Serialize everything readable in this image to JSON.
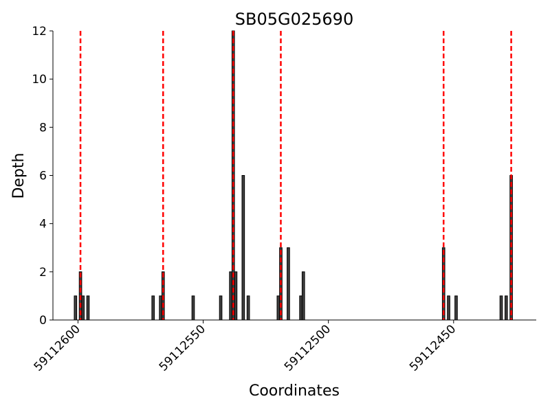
{
  "chart_data": {
    "type": "bar",
    "title": "SB05G025690",
    "xlabel": "Coordinates",
    "ylabel": "Depth",
    "x": [
      59112601,
      59112599,
      59112598,
      59112596,
      59112570,
      59112567,
      59112566,
      59112554,
      59112543,
      59112539,
      59112538,
      59112537,
      59112534,
      59112532,
      59112520,
      59112519,
      59112516,
      59112511,
      59112510,
      59112454,
      59112452,
      59112449,
      59112431,
      59112429,
      59112427
    ],
    "values": [
      1,
      2,
      1,
      1,
      1,
      1,
      2,
      1,
      1,
      2,
      12,
      2,
      6,
      1,
      1,
      3,
      3,
      1,
      2,
      3,
      1,
      1,
      1,
      1,
      6
    ],
    "color": "#404040",
    "vlines": [
      59112599,
      59112566,
      59112538,
      59112519,
      59112454,
      59112427
    ],
    "vline_color": "#ff0000",
    "xlim": [
      59112610,
      59112417
    ],
    "xticks": [
      59112600,
      59112550,
      59112500,
      59112450
    ],
    "ylim": [
      0,
      12
    ],
    "yticks": [
      0,
      2,
      4,
      6,
      8,
      10,
      12
    ],
    "grid": false
  }
}
